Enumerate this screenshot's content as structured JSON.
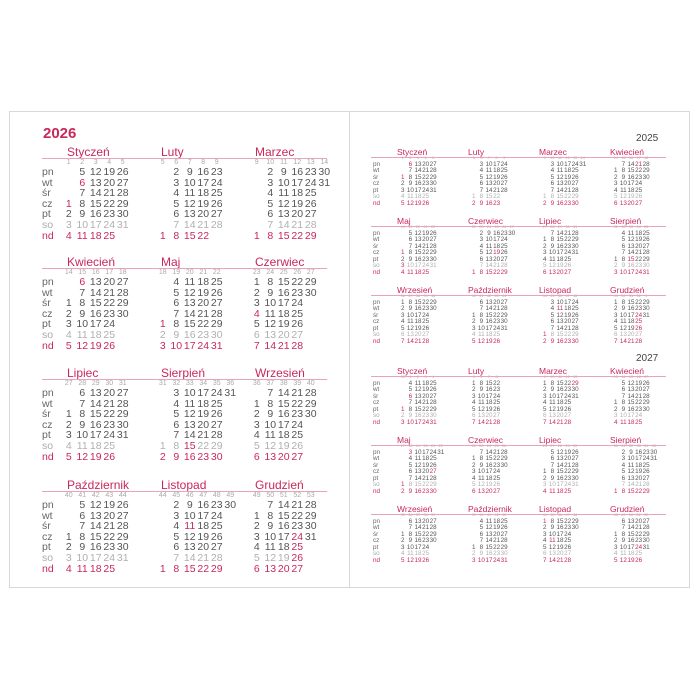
{
  "weekdays": [
    "pn",
    "wt",
    "śr",
    "cz",
    "pt",
    "so",
    "nd"
  ],
  "colors": {
    "accent": "#c8285a",
    "text": "#555555",
    "saturday": "#b0b0b0",
    "rule": "#eaa3bb"
  },
  "main": {
    "year": "2026",
    "months": [
      {
        "name": "Styczeń",
        "weeks": [
          1,
          2,
          3,
          4,
          5
        ],
        "start": 3,
        "length": 31,
        "red": [
          1,
          6
        ]
      },
      {
        "name": "Luty",
        "weeks": [
          5,
          6,
          7,
          8,
          9
        ],
        "start": 6,
        "length": 28,
        "red": []
      },
      {
        "name": "Marzec",
        "weeks": [
          9,
          10,
          11,
          12,
          13,
          14
        ],
        "start": 6,
        "length": 31,
        "red": []
      },
      {
        "name": "Kwiecień",
        "weeks": [
          14,
          15,
          16,
          17,
          18
        ],
        "start": 2,
        "length": 30,
        "red": [
          6
        ]
      },
      {
        "name": "Maj",
        "weeks": [
          18,
          19,
          20,
          21,
          22
        ],
        "start": 4,
        "length": 31,
        "red": [
          1
        ]
      },
      {
        "name": "Czerwiec",
        "weeks": [
          23,
          24,
          25,
          26,
          27
        ],
        "start": 0,
        "length": 30,
        "red": [
          4
        ]
      },
      {
        "name": "Lipiec",
        "weeks": [
          27,
          28,
          29,
          30,
          31
        ],
        "start": 2,
        "length": 31,
        "red": []
      },
      {
        "name": "Sierpień",
        "weeks": [
          31,
          32,
          33,
          34,
          35,
          36
        ],
        "start": 5,
        "length": 31,
        "red": [
          15
        ]
      },
      {
        "name": "Wrzesień",
        "weeks": [
          36,
          37,
          38,
          39,
          40
        ],
        "start": 1,
        "length": 30,
        "red": []
      },
      {
        "name": "Październik",
        "weeks": [
          40,
          41,
          42,
          43,
          44
        ],
        "start": 3,
        "length": 31,
        "red": []
      },
      {
        "name": "Listopad",
        "weeks": [
          44,
          45,
          46,
          47,
          48,
          49
        ],
        "start": 6,
        "length": 30,
        "red": [
          11
        ]
      },
      {
        "name": "Grudzień",
        "weeks": [
          49,
          50,
          51,
          52,
          53
        ],
        "start": 1,
        "length": 31,
        "red": [
          24,
          25,
          26
        ]
      }
    ]
  },
  "side": [
    {
      "year": "2025",
      "months": [
        {
          "name": "Styczeń",
          "weeks": [
            1,
            2,
            3,
            4,
            5
          ],
          "start": 2,
          "length": 31,
          "red": [
            1,
            6
          ]
        },
        {
          "name": "Luty",
          "weeks": [
            5,
            6,
            7,
            8,
            9
          ],
          "start": 5,
          "length": 28,
          "red": []
        },
        {
          "name": "Marzec",
          "weeks": [
            9,
            10,
            11,
            12,
            13,
            14
          ],
          "start": 5,
          "length": 31,
          "red": []
        },
        {
          "name": "Kwiecień",
          "weeks": [
            14,
            15,
            16,
            17,
            18
          ],
          "start": 1,
          "length": 30,
          "red": [
            21
          ]
        },
        {
          "name": "Maj",
          "weeks": [
            18,
            19,
            20,
            21,
            22
          ],
          "start": 3,
          "length": 31,
          "red": [
            1,
            3
          ]
        },
        {
          "name": "Czerwiec",
          "weeks": [
            22,
            23,
            24,
            25,
            26,
            27
          ],
          "start": 6,
          "length": 30,
          "red": [
            19
          ]
        },
        {
          "name": "Lipiec",
          "weeks": [
            27,
            28,
            29,
            30,
            31
          ],
          "start": 1,
          "length": 31,
          "red": []
        },
        {
          "name": "Sierpień",
          "weeks": [
            31,
            32,
            33,
            34,
            35
          ],
          "start": 4,
          "length": 31,
          "red": [
            15
          ]
        },
        {
          "name": "Wrzesień",
          "weeks": [
            36,
            37,
            38,
            39,
            40
          ],
          "start": 0,
          "length": 30,
          "red": []
        },
        {
          "name": "Październik",
          "weeks": [
            40,
            41,
            42,
            43,
            44
          ],
          "start": 2,
          "length": 31,
          "red": []
        },
        {
          "name": "Listopad",
          "weeks": [
            44,
            45,
            46,
            47,
            48
          ],
          "start": 5,
          "length": 30,
          "red": [
            1,
            11
          ]
        },
        {
          "name": "Grudzień",
          "weeks": [
            49,
            50,
            51,
            52,
            1
          ],
          "start": 0,
          "length": 31,
          "red": [
            24,
            25,
            26
          ]
        }
      ]
    },
    {
      "year": "2027",
      "months": [
        {
          "name": "Styczeń",
          "weeks": [
            53,
            1,
            2,
            3,
            4
          ],
          "start": 4,
          "length": 31,
          "red": [
            1,
            6
          ]
        },
        {
          "name": "Luty",
          "weeks": [
            5,
            6,
            7,
            8
          ],
          "start": 0,
          "length": 28,
          "red": []
        },
        {
          "name": "Marzec",
          "weeks": [
            9,
            10,
            11,
            12,
            13
          ],
          "start": 0,
          "length": 31,
          "red": [
            29
          ]
        },
        {
          "name": "Kwiecień",
          "weeks": [
            13,
            14,
            15,
            16,
            17
          ],
          "start": 3,
          "length": 30,
          "red": []
        },
        {
          "name": "Maj",
          "weeks": [
            17,
            18,
            19,
            20,
            21,
            22
          ],
          "start": 5,
          "length": 31,
          "red": [
            1,
            3,
            27
          ]
        },
        {
          "name": "Czerwiec",
          "weeks": [
            22,
            23,
            24,
            25,
            26
          ],
          "start": 1,
          "length": 30,
          "red": []
        },
        {
          "name": "Lipiec",
          "weeks": [
            26,
            27,
            28,
            29,
            30
          ],
          "start": 3,
          "length": 31,
          "red": []
        },
        {
          "name": "Sierpień",
          "weeks": [
            30,
            31,
            32,
            33,
            34,
            35
          ],
          "start": 6,
          "length": 31,
          "red": []
        },
        {
          "name": "Wrzesień",
          "weeks": [
            35,
            36,
            37,
            38,
            39
          ],
          "start": 2,
          "length": 30,
          "red": []
        },
        {
          "name": "Październik",
          "weeks": [
            39,
            40,
            41,
            42,
            43
          ],
          "start": 4,
          "length": 31,
          "red": []
        },
        {
          "name": "Listopad",
          "weeks": [
            44,
            45,
            46,
            47,
            48
          ],
          "start": 0,
          "length": 30,
          "red": [
            1,
            11
          ]
        },
        {
          "name": "Grudzień",
          "weeks": [
            48,
            49,
            50,
            51,
            52
          ],
          "start": 2,
          "length": 31,
          "red": [
            24
          ]
        }
      ]
    }
  ]
}
